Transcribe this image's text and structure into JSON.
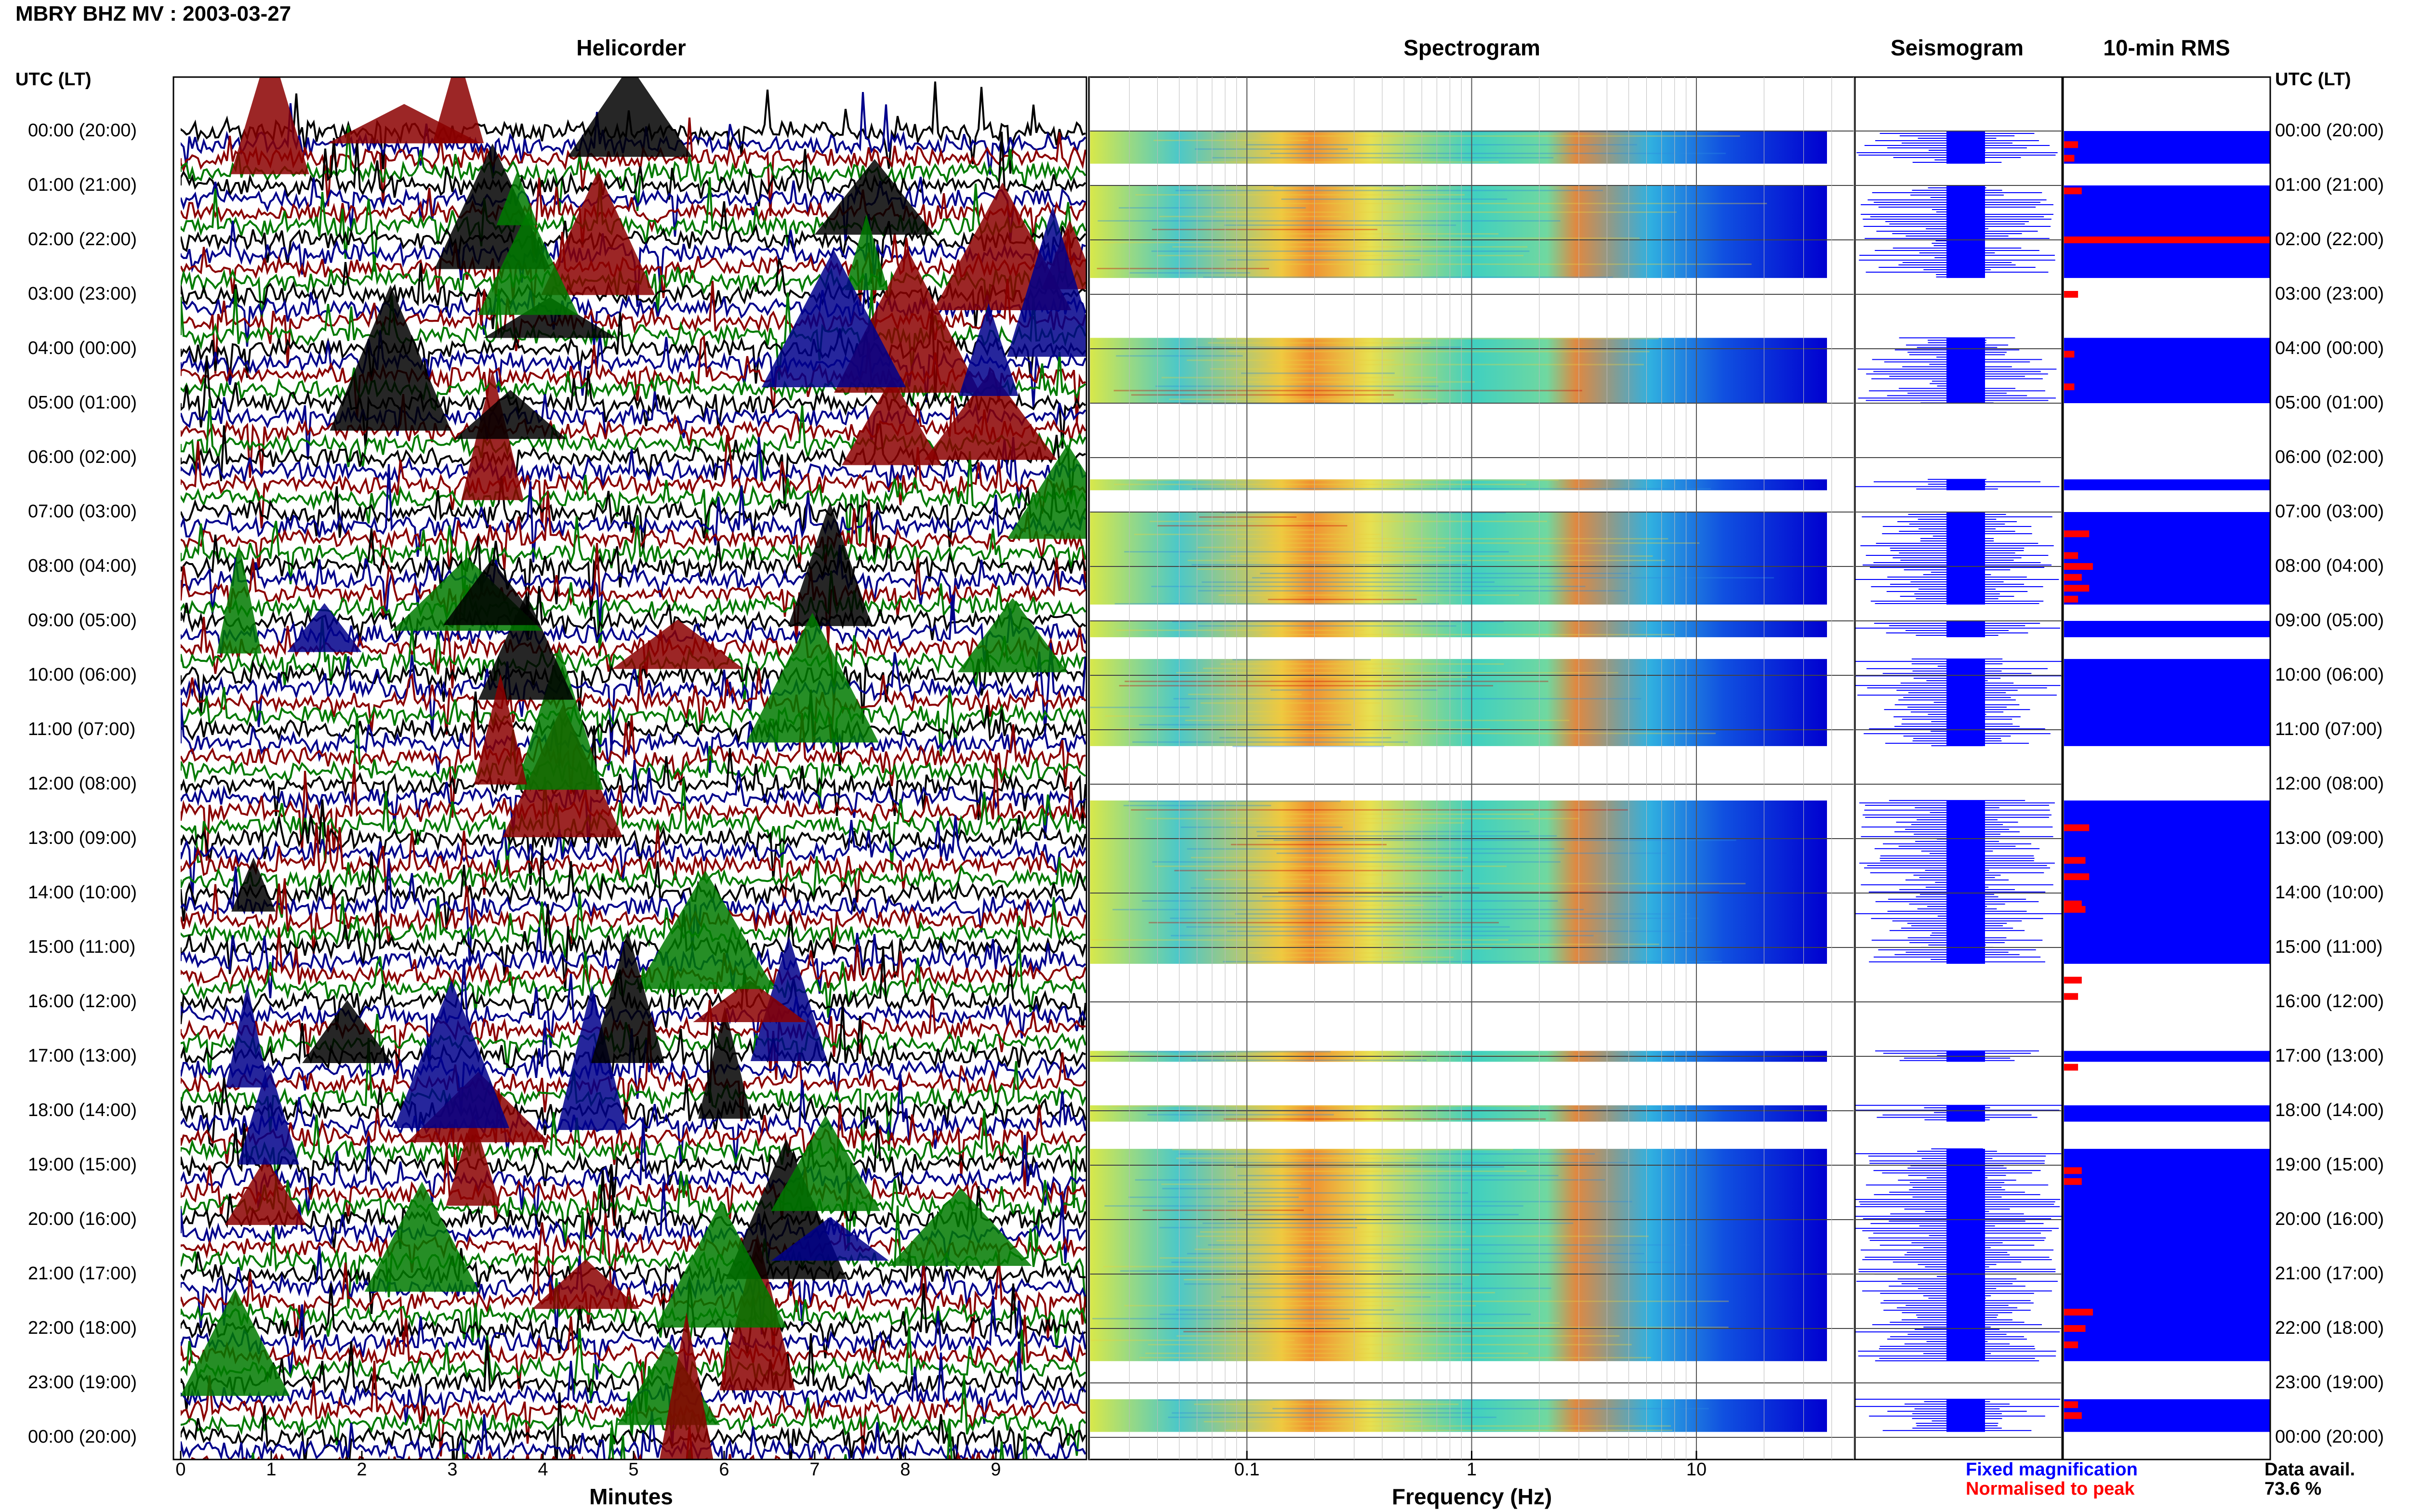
{
  "header": {
    "title": "MBRY BHZ MV : 2003-03-27"
  },
  "panels": {
    "helicorder": "Helicorder",
    "spectrogram": "Spectrogram",
    "seismogram": "Seismogram",
    "rms": "10-min RMS"
  },
  "axis_header_left": "UTC (LT)",
  "axis_header_right": "UTC (LT)",
  "hour_labels": [
    "00:00 (20:00)",
    "01:00 (21:00)",
    "02:00 (22:00)",
    "03:00 (23:00)",
    "04:00 (00:00)",
    "05:00 (01:00)",
    "06:00 (02:00)",
    "07:00 (03:00)",
    "08:00 (04:00)",
    "09:00 (05:00)",
    "10:00 (06:00)",
    "11:00 (07:00)",
    "12:00 (08:00)",
    "13:00 (09:00)",
    "14:00 (10:00)",
    "15:00 (11:00)",
    "16:00 (12:00)",
    "17:00 (13:00)",
    "18:00 (14:00)",
    "19:00 (15:00)",
    "20:00 (16:00)",
    "21:00 (17:00)",
    "22:00 (18:00)",
    "23:00 (19:00)",
    "00:00 (20:00)"
  ],
  "helicorder_x": {
    "label": "Minutes",
    "ticks": [
      "0",
      "1",
      "2",
      "3",
      "4",
      "5",
      "6",
      "7",
      "8",
      "9"
    ]
  },
  "spectrogram_x": {
    "label": "Frequency (Hz)",
    "ticks": [
      "0.1",
      "1",
      "10"
    ],
    "scale": "log"
  },
  "legend": {
    "fixed": {
      "text": "Fixed magnification",
      "color": "#0000ff"
    },
    "normalised": {
      "text": "Normalised to peak",
      "color": "#ff0000"
    }
  },
  "data_availability": {
    "label": "Data avail.",
    "value": "73.6 %"
  },
  "chart_data": {
    "type": "heatmap",
    "title": "MBRY BHZ MV : 2003-03-27",
    "trace_colors": [
      "#000000",
      "#00008b",
      "#8b0000",
      "#007a00"
    ],
    "data_present_intervals_utc_hours": [
      [
        0.0,
        0.6
      ],
      [
        1.0,
        2.7
      ],
      [
        3.8,
        5.0
      ],
      [
        6.4,
        6.6
      ],
      [
        7.0,
        8.7
      ],
      [
        9.0,
        9.3
      ],
      [
        9.7,
        11.3
      ],
      [
        12.3,
        15.3
      ],
      [
        16.9,
        17.1
      ],
      [
        17.9,
        18.2
      ],
      [
        18.7,
        22.6
      ],
      [
        23.3,
        23.9
      ]
    ],
    "rms_normalised_peaks": [
      {
        "hour": 0.25,
        "value": 0.3
      },
      {
        "hour": 0.5,
        "value": 0.2
      },
      {
        "hour": 1.1,
        "value": 0.4
      },
      {
        "hour": 2.0,
        "value": 1.0
      },
      {
        "hour": 3.0,
        "value": 0.3
      },
      {
        "hour": 4.1,
        "value": 0.2
      },
      {
        "hour": 4.7,
        "value": 0.2
      },
      {
        "hour": 7.4,
        "value": 0.6
      },
      {
        "hour": 7.8,
        "value": 0.3
      },
      {
        "hour": 8.0,
        "value": 0.7
      },
      {
        "hour": 8.2,
        "value": 0.4
      },
      {
        "hour": 8.4,
        "value": 0.6
      },
      {
        "hour": 8.6,
        "value": 0.3
      },
      {
        "hour": 12.8,
        "value": 0.6
      },
      {
        "hour": 13.4,
        "value": 0.5
      },
      {
        "hour": 13.7,
        "value": 0.6
      },
      {
        "hour": 14.2,
        "value": 0.4
      },
      {
        "hour": 14.3,
        "value": 0.5
      },
      {
        "hour": 15.6,
        "value": 0.4
      },
      {
        "hour": 15.9,
        "value": 0.3
      },
      {
        "hour": 17.2,
        "value": 0.3
      },
      {
        "hour": 19.1,
        "value": 0.4
      },
      {
        "hour": 19.3,
        "value": 0.4
      },
      {
        "hour": 21.7,
        "value": 0.7
      },
      {
        "hour": 22.0,
        "value": 0.5
      },
      {
        "hour": 22.3,
        "value": 0.3
      },
      {
        "hour": 23.4,
        "value": 0.3
      },
      {
        "hour": 23.6,
        "value": 0.4
      }
    ],
    "helicorder_xlim": [
      0,
      10
    ],
    "spectrogram_xlim_hz": [
      0.02,
      50
    ],
    "data_availability_percent": 73.6
  }
}
